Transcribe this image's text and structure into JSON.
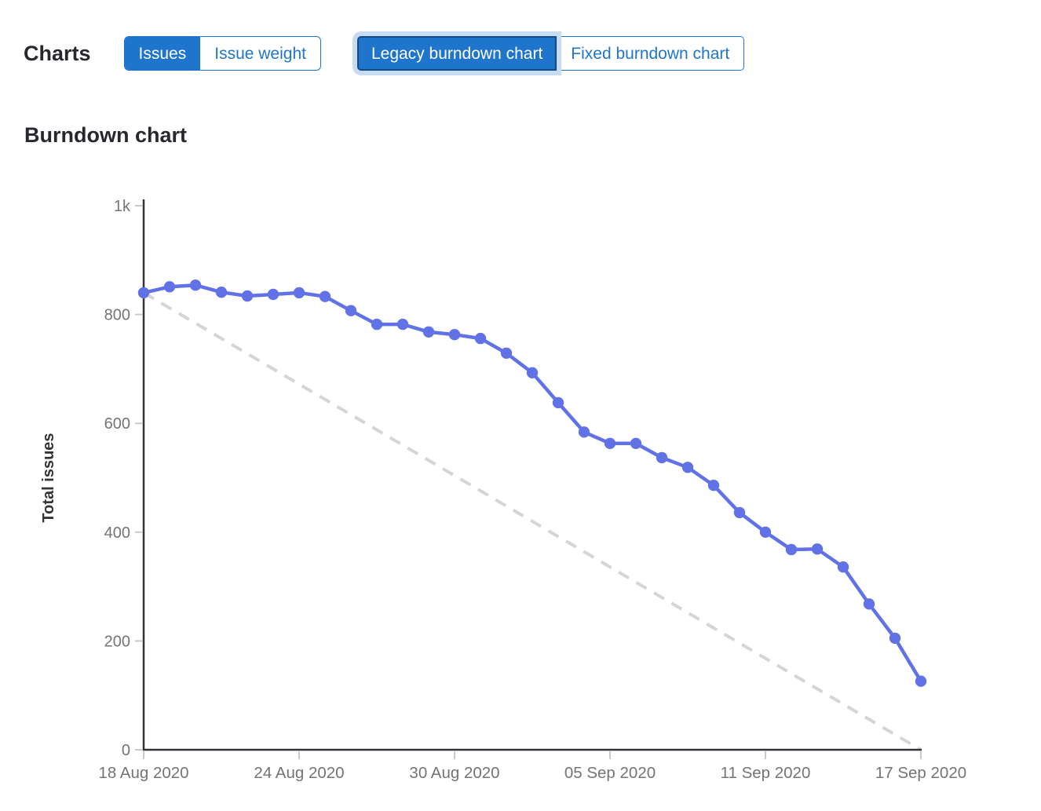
{
  "toolbar": {
    "charts_label": "Charts",
    "metric_toggle": {
      "options": [
        {
          "label": "Issues",
          "selected": true
        },
        {
          "label": "Issue weight",
          "selected": false
        }
      ]
    },
    "chart_type_toggle": {
      "options": [
        {
          "label": "Legacy burndown chart",
          "selected": true,
          "focused": true
        },
        {
          "label": "Fixed burndown chart",
          "selected": false
        }
      ]
    }
  },
  "section": {
    "title": "Burndown chart"
  },
  "chart_data": {
    "type": "line",
    "title": "Burndown chart",
    "xlabel": "",
    "ylabel": "Total issues",
    "ylim": [
      0,
      1000
    ],
    "grid": false,
    "legend": "none",
    "background": "#ffffff",
    "y_ticks": [
      {
        "value": 0,
        "label": "0"
      },
      {
        "value": 200,
        "label": "200"
      },
      {
        "value": 400,
        "label": "400"
      },
      {
        "value": 600,
        "label": "600"
      },
      {
        "value": 800,
        "label": "800"
      },
      {
        "value": 1000,
        "label": "1k"
      }
    ],
    "x_ticks": [
      {
        "day": 0,
        "label": "18 Aug 2020"
      },
      {
        "day": 6,
        "label": "24 Aug 2020"
      },
      {
        "day": 12,
        "label": "30 Aug 2020"
      },
      {
        "day": 18,
        "label": "05 Sep 2020"
      },
      {
        "day": 24,
        "label": "11 Sep 2020"
      },
      {
        "day": 30,
        "label": "17 Sep 2020"
      }
    ],
    "x": [
      "18 Aug 2020",
      "19 Aug 2020",
      "20 Aug 2020",
      "21 Aug 2020",
      "22 Aug 2020",
      "23 Aug 2020",
      "24 Aug 2020",
      "25 Aug 2020",
      "26 Aug 2020",
      "27 Aug 2020",
      "28 Aug 2020",
      "29 Aug 2020",
      "30 Aug 2020",
      "31 Aug 2020",
      "01 Sep 2020",
      "02 Sep 2020",
      "03 Sep 2020",
      "04 Sep 2020",
      "05 Sep 2020",
      "06 Sep 2020",
      "07 Sep 2020",
      "08 Sep 2020",
      "09 Sep 2020",
      "10 Sep 2020",
      "11 Sep 2020",
      "12 Sep 2020",
      "13 Sep 2020",
      "14 Sep 2020",
      "15 Sep 2020",
      "16 Sep 2020",
      "17 Sep 2020"
    ],
    "series": [
      {
        "name": "Total issues",
        "type": "line",
        "color": "#6172e6",
        "values": [
          840,
          851,
          854,
          841,
          834,
          837,
          840,
          833,
          807,
          782,
          782,
          768,
          763,
          756,
          729,
          693,
          638,
          584,
          563,
          563,
          537,
          519,
          486,
          436,
          400,
          368,
          369,
          336,
          268,
          205,
          126
        ]
      }
    ],
    "guideline": {
      "name": "Ideal burndown",
      "style": "dashed",
      "color": "#d5d5d5",
      "points": [
        [
          0,
          840
        ],
        [
          30,
          0
        ]
      ]
    }
  },
  "colors": {
    "accent_blue": "#1f75cb",
    "selected_border": "#134a81",
    "focus_ring": "#c7dcf3",
    "series_blue": "#6172e6",
    "guideline_gray": "#d5d5d5",
    "axis": "#33343a",
    "tick": "#c9c9c9",
    "tick_label": "#747474",
    "heading": "#28272d"
  }
}
